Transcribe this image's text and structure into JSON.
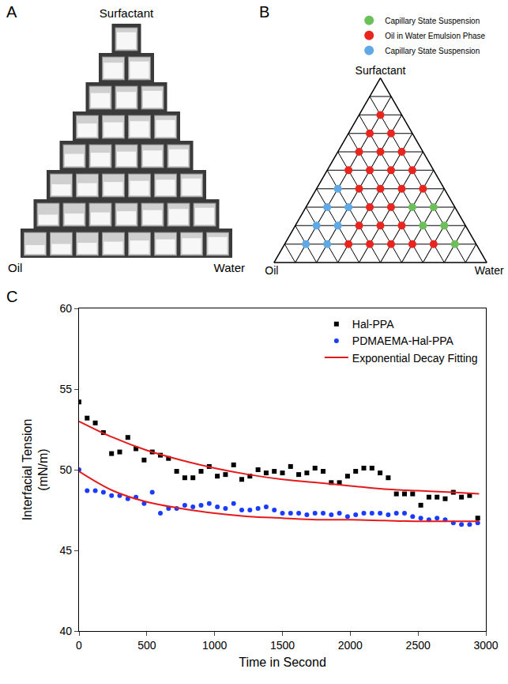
{
  "chart_data": [
    {
      "panel": "A",
      "type": "photo",
      "labels": {
        "top": "Surfactant",
        "left": "Oil",
        "right": "Water"
      }
    },
    {
      "panel": "B",
      "type": "ternary",
      "axes": {
        "top": "Surfactant",
        "left": "Oil",
        "right": "Water"
      },
      "ticks": [
        0.1,
        0.2,
        0.3,
        0.4,
        0.5,
        0.6,
        0.7,
        0.8,
        0.9
      ],
      "tick_labels": false,
      "grid": true,
      "legend": "top right",
      "series": [
        {
          "name": "Capillary State Suspension",
          "color": "#6cc05a",
          "marker": "circle",
          "surfactant": [
            0.3,
            0.3,
            0.2,
            0.2,
            0.1
          ],
          "oil": [
            0.2,
            0.1,
            0.2,
            0.1,
            0.1
          ],
          "water": [
            0.5,
            0.6,
            0.6,
            0.7,
            0.8
          ]
        },
        {
          "name": "Oil in Water Emulsion Phase",
          "color": "#e8251f",
          "marker": "circle",
          "surfactant": [
            0.8,
            0.7,
            0.7,
            0.6,
            0.6,
            0.6,
            0.5,
            0.5,
            0.5,
            0.5,
            0.4,
            0.4,
            0.4,
            0.4,
            0.3,
            0.3,
            0.2,
            0.2,
            0.2,
            0.1,
            0.1,
            0.1,
            0.1,
            0.1
          ],
          "oil": [
            0.1,
            0.2,
            0.1,
            0.3,
            0.2,
            0.1,
            0.4,
            0.3,
            0.2,
            0.1,
            0.4,
            0.3,
            0.2,
            0.1,
            0.4,
            0.3,
            0.5,
            0.4,
            0.3,
            0.6,
            0.5,
            0.4,
            0.3,
            0.2
          ],
          "water": [
            0.1,
            0.1,
            0.2,
            0.1,
            0.2,
            0.3,
            0.1,
            0.2,
            0.3,
            0.4,
            0.2,
            0.3,
            0.4,
            0.5,
            0.3,
            0.4,
            0.3,
            0.4,
            0.5,
            0.3,
            0.4,
            0.5,
            0.6,
            0.7
          ]
        },
        {
          "name": "Capillary State Suspension",
          "color": "#5ea9e6",
          "marker": "circle",
          "surfactant": [
            0.4,
            0.3,
            0.3,
            0.2,
            0.2,
            0.1,
            0.1
          ],
          "oil": [
            0.5,
            0.6,
            0.5,
            0.7,
            0.6,
            0.8,
            0.7
          ],
          "water": [
            0.1,
            0.1,
            0.2,
            0.1,
            0.2,
            0.1,
            0.2
          ]
        }
      ]
    },
    {
      "panel": "C",
      "type": "scatter",
      "xlabel": "Time in Second",
      "ylabel": [
        "Interfacial Tension",
        "(mN/m)"
      ],
      "xlim": [
        0,
        3000
      ],
      "xticks": [
        0,
        500,
        1000,
        1500,
        2000,
        2500,
        3000
      ],
      "ylim": [
        40,
        60
      ],
      "yticks": [
        40,
        45,
        50,
        55,
        60
      ],
      "grid": false,
      "legend": "top right",
      "series": [
        {
          "name": "Hal-PPA",
          "type": "scatter",
          "color": "#000000",
          "marker": "square",
          "x": [
            0,
            60,
            120,
            180,
            240,
            300,
            360,
            420,
            480,
            540,
            600,
            660,
            720,
            780,
            840,
            900,
            960,
            1020,
            1080,
            1140,
            1200,
            1260,
            1320,
            1380,
            1440,
            1500,
            1560,
            1620,
            1680,
            1740,
            1800,
            1860,
            1920,
            1980,
            2040,
            2100,
            2160,
            2220,
            2280,
            2340,
            2400,
            2460,
            2520,
            2580,
            2640,
            2700,
            2760,
            2820,
            2880,
            2940
          ],
          "values": [
            54.2,
            53.2,
            52.9,
            52.3,
            51.0,
            51.1,
            52.0,
            51.3,
            50.6,
            51.1,
            50.9,
            50.7,
            49.9,
            49.5,
            49.5,
            49.9,
            50.2,
            49.6,
            49.7,
            50.3,
            49.4,
            49.6,
            50.0,
            49.8,
            49.9,
            49.8,
            50.2,
            49.7,
            49.8,
            50.1,
            49.9,
            49.2,
            49.2,
            49.6,
            49.9,
            50.1,
            50.1,
            49.8,
            49.5,
            48.5,
            48.5,
            48.5,
            47.8,
            48.3,
            48.3,
            48.2,
            48.6,
            48.3,
            48.4,
            47.0
          ]
        },
        {
          "name": "PDMAEMA-Hal-PPA",
          "type": "scatter",
          "color": "#1a3cff",
          "marker": "circle",
          "x": [
            0,
            60,
            120,
            180,
            240,
            300,
            360,
            420,
            480,
            540,
            600,
            660,
            720,
            780,
            840,
            900,
            960,
            1020,
            1080,
            1140,
            1200,
            1260,
            1320,
            1380,
            1440,
            1500,
            1560,
            1620,
            1680,
            1740,
            1800,
            1860,
            1920,
            1980,
            2040,
            2100,
            2160,
            2220,
            2280,
            2340,
            2400,
            2460,
            2520,
            2580,
            2640,
            2700,
            2760,
            2820,
            2880,
            2940
          ],
          "values": [
            50.0,
            48.7,
            48.7,
            48.6,
            48.4,
            48.4,
            48.2,
            48.3,
            47.9,
            48.6,
            47.3,
            47.6,
            47.6,
            47.8,
            47.7,
            47.8,
            47.9,
            47.7,
            47.6,
            47.9,
            47.5,
            47.5,
            47.6,
            47.7,
            47.5,
            47.3,
            47.3,
            47.3,
            47.2,
            47.3,
            47.3,
            47.2,
            47.3,
            47.1,
            47.2,
            47.3,
            47.3,
            47.3,
            47.2,
            47.3,
            47.3,
            47.1,
            47.0,
            46.9,
            47.0,
            46.9,
            46.7,
            46.6,
            46.6,
            46.7
          ]
        },
        {
          "name": "Exponential Decay Fitting",
          "type": "line",
          "color": "#e41a1c",
          "line_style": "solid",
          "x": [
            0,
            250,
            500,
            750,
            1000,
            1250,
            1500,
            1750,
            2000,
            2250,
            2500,
            2750,
            2950,
            null,
            0,
            250,
            500,
            750,
            1000,
            1250,
            1500,
            1750,
            2000,
            2250,
            2500,
            2750,
            2950
          ],
          "values": [
            53.0,
            52.0,
            51.2,
            50.6,
            50.1,
            49.7,
            49.4,
            49.2,
            49.0,
            48.8,
            48.7,
            48.6,
            48.5,
            null,
            49.9,
            48.7,
            48.0,
            47.6,
            47.3,
            47.1,
            47.0,
            46.9,
            46.9,
            46.85,
            46.8,
            46.8,
            46.8
          ]
        }
      ]
    }
  ]
}
